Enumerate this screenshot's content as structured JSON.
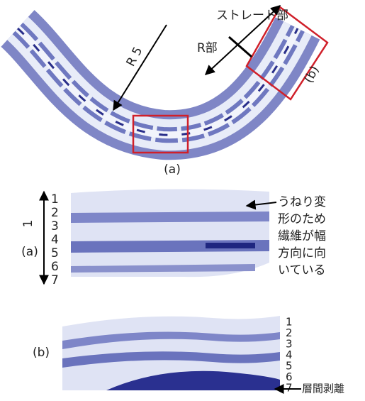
{
  "overview": {
    "straight_label": "ストレート部",
    "r_label": "R部",
    "radius_label": "R 5",
    "box_b_label": "(b)",
    "caption": "(a)"
  },
  "panel_a": {
    "label": "(a)",
    "thickness_label": "1",
    "layers": [
      "1",
      "2",
      "3",
      "4",
      "5",
      "6",
      "7"
    ],
    "note_lines": [
      "うねり変",
      "形のため",
      "繊維が幅",
      "方向に向",
      "いている"
    ]
  },
  "panel_b": {
    "label": "(b)",
    "layers": [
      "1",
      "2",
      "3",
      "4",
      "5",
      "6",
      "7"
    ],
    "note": "層間剥離"
  }
}
